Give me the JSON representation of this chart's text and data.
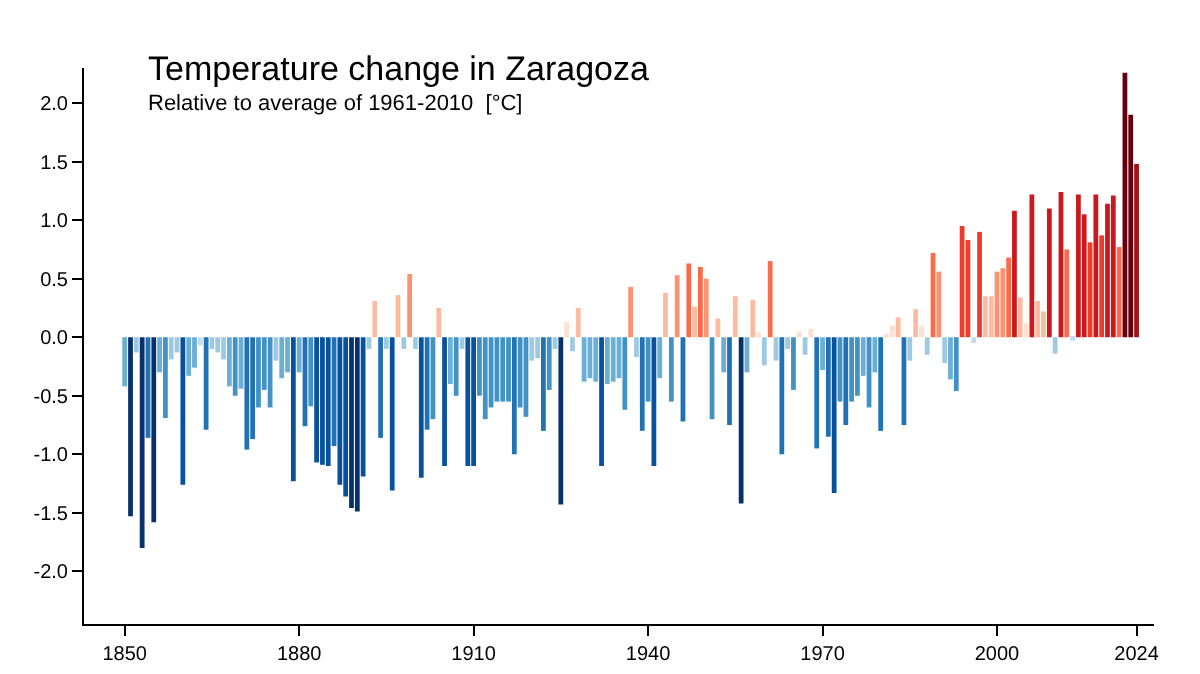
{
  "chart_data": {
    "type": "bar",
    "title": "Temperature change in Zaragoza",
    "subtitle": "Relative to average of 1961-2010  [°C]",
    "x": [
      1850,
      1851,
      1852,
      1853,
      1854,
      1855,
      1856,
      1857,
      1858,
      1859,
      1860,
      1861,
      1862,
      1863,
      1864,
      1865,
      1866,
      1867,
      1868,
      1869,
      1870,
      1871,
      1872,
      1873,
      1874,
      1875,
      1876,
      1877,
      1878,
      1879,
      1880,
      1881,
      1882,
      1883,
      1884,
      1885,
      1886,
      1887,
      1888,
      1889,
      1890,
      1891,
      1892,
      1893,
      1894,
      1895,
      1896,
      1897,
      1898,
      1899,
      1900,
      1901,
      1902,
      1903,
      1904,
      1905,
      1906,
      1907,
      1908,
      1909,
      1910,
      1911,
      1912,
      1913,
      1914,
      1915,
      1916,
      1917,
      1918,
      1919,
      1920,
      1921,
      1922,
      1923,
      1924,
      1925,
      1926,
      1927,
      1928,
      1929,
      1930,
      1931,
      1932,
      1933,
      1934,
      1935,
      1936,
      1937,
      1938,
      1939,
      1940,
      1941,
      1942,
      1943,
      1944,
      1945,
      1946,
      1947,
      1948,
      1949,
      1950,
      1951,
      1952,
      1953,
      1954,
      1955,
      1956,
      1957,
      1958,
      1959,
      1960,
      1961,
      1962,
      1963,
      1964,
      1965,
      1966,
      1967,
      1968,
      1969,
      1970,
      1971,
      1972,
      1973,
      1974,
      1975,
      1976,
      1977,
      1978,
      1979,
      1980,
      1981,
      1982,
      1983,
      1984,
      1985,
      1986,
      1987,
      1988,
      1989,
      1990,
      1991,
      1992,
      1993,
      1994,
      1995,
      1996,
      1997,
      1998,
      1999,
      2000,
      2001,
      2002,
      2003,
      2004,
      2005,
      2006,
      2007,
      2008,
      2009,
      2010,
      2011,
      2012,
      2013,
      2014,
      2015,
      2016,
      2017,
      2018,
      2019,
      2020,
      2021,
      2022,
      2023,
      2024
    ],
    "values": [
      -0.42,
      -1.53,
      -0.13,
      -1.8,
      -0.86,
      -1.58,
      -0.3,
      -0.69,
      -0.19,
      -0.13,
      -1.26,
      -0.33,
      -0.26,
      -0.07,
      -0.79,
      -0.1,
      -0.13,
      -0.19,
      -0.42,
      -0.5,
      -0.44,
      -0.96,
      -0.87,
      -0.6,
      -0.45,
      -0.6,
      -0.2,
      -0.35,
      -0.3,
      -1.23,
      -0.3,
      -0.76,
      -0.59,
      -1.07,
      -1.09,
      -1.1,
      -0.93,
      -1.26,
      -1.36,
      -1.46,
      -1.49,
      -1.19,
      -0.1,
      0.31,
      -0.86,
      -0.1,
      -1.31,
      0.36,
      -0.1,
      0.54,
      -0.1,
      -1.2,
      -0.79,
      -0.7,
      0.25,
      -1.1,
      -0.4,
      -0.5,
      -0.1,
      -1.1,
      -1.1,
      -0.5,
      -0.7,
      -0.6,
      -0.55,
      -0.55,
      -0.55,
      -1.0,
      -0.6,
      -0.68,
      -0.2,
      -0.18,
      -0.8,
      -0.45,
      -0.1,
      -1.43,
      0.13,
      -0.12,
      0.25,
      -0.38,
      -0.35,
      -0.38,
      -1.1,
      -0.4,
      -0.38,
      -0.35,
      -0.62,
      0.43,
      -0.17,
      -0.8,
      -0.55,
      -1.1,
      -0.35,
      0.38,
      -0.55,
      0.53,
      -0.72,
      0.63,
      0.26,
      0.6,
      0.5,
      -0.7,
      0.16,
      -0.3,
      -0.75,
      0.35,
      -1.42,
      -0.3,
      0.32,
      0.04,
      -0.24,
      0.65,
      -0.2,
      -1.0,
      -0.1,
      -0.45,
      0.05,
      -0.15,
      0.07,
      -0.95,
      -0.28,
      -0.85,
      -1.33,
      -0.55,
      -0.75,
      -0.55,
      -0.5,
      -0.33,
      -0.6,
      -0.3,
      -0.8,
      0.03,
      0.1,
      0.17,
      -0.75,
      -0.2,
      0.24,
      0.1,
      -0.15,
      0.72,
      0.56,
      -0.22,
      -0.36,
      -0.46,
      0.95,
      0.83,
      -0.05,
      0.9,
      0.35,
      0.35,
      0.56,
      0.59,
      0.68,
      1.08,
      0.34,
      0.12,
      1.22,
      0.31,
      0.22,
      1.1,
      -0.14,
      1.24,
      0.75,
      -0.03,
      1.22,
      1.05,
      0.81,
      1.22,
      0.87,
      1.14,
      1.21,
      0.77,
      2.26,
      1.9,
      1.48
    ],
    "colors": [
      "#6baed6",
      "#08306b",
      "#9ecae1",
      "#08306b",
      "#2171b5",
      "#08306b",
      "#6baed6",
      "#4292c6",
      "#9ecae1",
      "#9ecae1",
      "#08519c",
      "#6baed6",
      "#6baed6",
      "#c6dbef",
      "#2171b5",
      "#9ecae1",
      "#9ecae1",
      "#9ecae1",
      "#6baed6",
      "#4292c6",
      "#6baed6",
      "#2171b5",
      "#2171b5",
      "#4292c6",
      "#4292c6",
      "#4292c6",
      "#9ecae1",
      "#6baed6",
      "#6baed6",
      "#08519c",
      "#6baed6",
      "#2171b5",
      "#4292c6",
      "#08519c",
      "#08519c",
      "#08519c",
      "#2171b5",
      "#08519c",
      "#08519c",
      "#08306b",
      "#08306b",
      "#08519c",
      "#9ecae1",
      "#fcbba1",
      "#2171b5",
      "#9ecae1",
      "#08519c",
      "#fcbba1",
      "#9ecae1",
      "#fc9272",
      "#9ecae1",
      "#08519c",
      "#2171b5",
      "#4292c6",
      "#fcbba1",
      "#08519c",
      "#6baed6",
      "#4292c6",
      "#9ecae1",
      "#08519c",
      "#08519c",
      "#4292c6",
      "#4292c6",
      "#4292c6",
      "#4292c6",
      "#4292c6",
      "#4292c6",
      "#2171b5",
      "#4292c6",
      "#4292c6",
      "#9ecae1",
      "#9ecae1",
      "#2171b5",
      "#4292c6",
      "#9ecae1",
      "#08306b",
      "#fee0d2",
      "#9ecae1",
      "#fcbba1",
      "#6baed6",
      "#6baed6",
      "#6baed6",
      "#08519c",
      "#6baed6",
      "#6baed6",
      "#6baed6",
      "#4292c6",
      "#fc9272",
      "#9ecae1",
      "#2171b5",
      "#4292c6",
      "#08519c",
      "#6baed6",
      "#fcbba1",
      "#4292c6",
      "#fc9272",
      "#2171b5",
      "#fb6a4a",
      "#fcbba1",
      "#fb6a4a",
      "#fc9272",
      "#4292c6",
      "#fcbba1",
      "#6baed6",
      "#2171b5",
      "#fcbba1",
      "#08306b",
      "#6baed6",
      "#fcbba1",
      "#fee0d2",
      "#9ecae1",
      "#fb6a4a",
      "#9ecae1",
      "#2171b5",
      "#9ecae1",
      "#4292c6",
      "#fee0d2",
      "#9ecae1",
      "#fee0d2",
      "#2171b5",
      "#6baed6",
      "#2171b5",
      "#08519c",
      "#4292c6",
      "#2171b5",
      "#4292c6",
      "#4292c6",
      "#6baed6",
      "#4292c6",
      "#6baed6",
      "#2171b5",
      "#fee0d2",
      "#fee0d2",
      "#fcbba1",
      "#2171b5",
      "#9ecae1",
      "#fcbba1",
      "#fee0d2",
      "#9ecae1",
      "#fb6a4a",
      "#fc9272",
      "#9ecae1",
      "#6baed6",
      "#4292c6",
      "#ef3b2c",
      "#ef3b2c",
      "#c6dbef",
      "#ef3b2c",
      "#fcbba1",
      "#fcbba1",
      "#fc9272",
      "#fc9272",
      "#fb6a4a",
      "#cb181d",
      "#fcbba1",
      "#fee0d2",
      "#cb181d",
      "#fcbba1",
      "#fcbba1",
      "#cb181d",
      "#9ecae1",
      "#cb181d",
      "#fb6a4a",
      "#c6dbef",
      "#cb181d",
      "#cb181d",
      "#ef3b2c",
      "#cb181d",
      "#ef3b2c",
      "#cb181d",
      "#cb181d",
      "#fb6a4a",
      "#67000d",
      "#67000d",
      "#a50f15"
    ],
    "xlim": [
      1843,
      2027
    ],
    "xticks": [
      1850,
      1880,
      1910,
      1940,
      1970,
      2000,
      2024
    ],
    "ylim": [
      -2.45,
      2.3
    ],
    "yticks": [
      {
        "value": 2,
        "label": "2.0"
      },
      {
        "value": 1.5,
        "label": "1.5"
      },
      {
        "value": 1,
        "label": "1.0"
      },
      {
        "value": 0.5,
        "label": "0.5"
      },
      {
        "value": 0,
        "label": "0.0"
      },
      {
        "value": -0.5,
        "label": "-0.5"
      },
      {
        "value": -1,
        "label": "-1.0"
      },
      {
        "value": -1.5,
        "label": "-1.5"
      },
      {
        "value": -2,
        "label": "-2.0"
      }
    ],
    "orientation": "vertical"
  }
}
